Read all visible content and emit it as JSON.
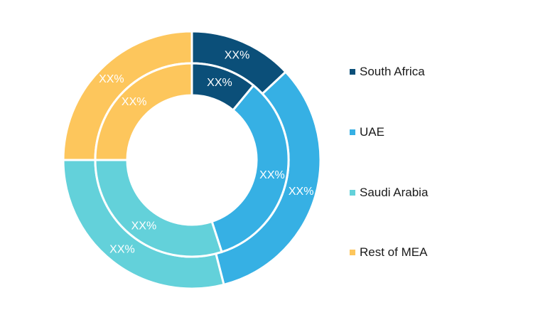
{
  "chart_data": {
    "type": "pie",
    "subtype": "double-donut",
    "categories": [
      "South Africa",
      "UAE",
      "Saudi Arabia",
      "Rest of MEA"
    ],
    "colors": [
      "#0b4f79",
      "#36b0e4",
      "#63d1da",
      "#fdc65c"
    ],
    "series": [
      {
        "ring": "outer",
        "values": [
          13,
          33,
          29,
          25
        ],
        "labels": [
          "XX%",
          "XX%",
          "XX%",
          "XX%"
        ]
      },
      {
        "ring": "inner",
        "values": [
          11,
          34,
          30,
          25
        ],
        "labels": [
          "XX%",
          "XX%",
          "XX%",
          "XX%"
        ]
      }
    ],
    "legend": {
      "position": "right",
      "items": [
        "South Africa",
        "UAE",
        "Saudi Arabia",
        "Rest of MEA"
      ]
    }
  }
}
